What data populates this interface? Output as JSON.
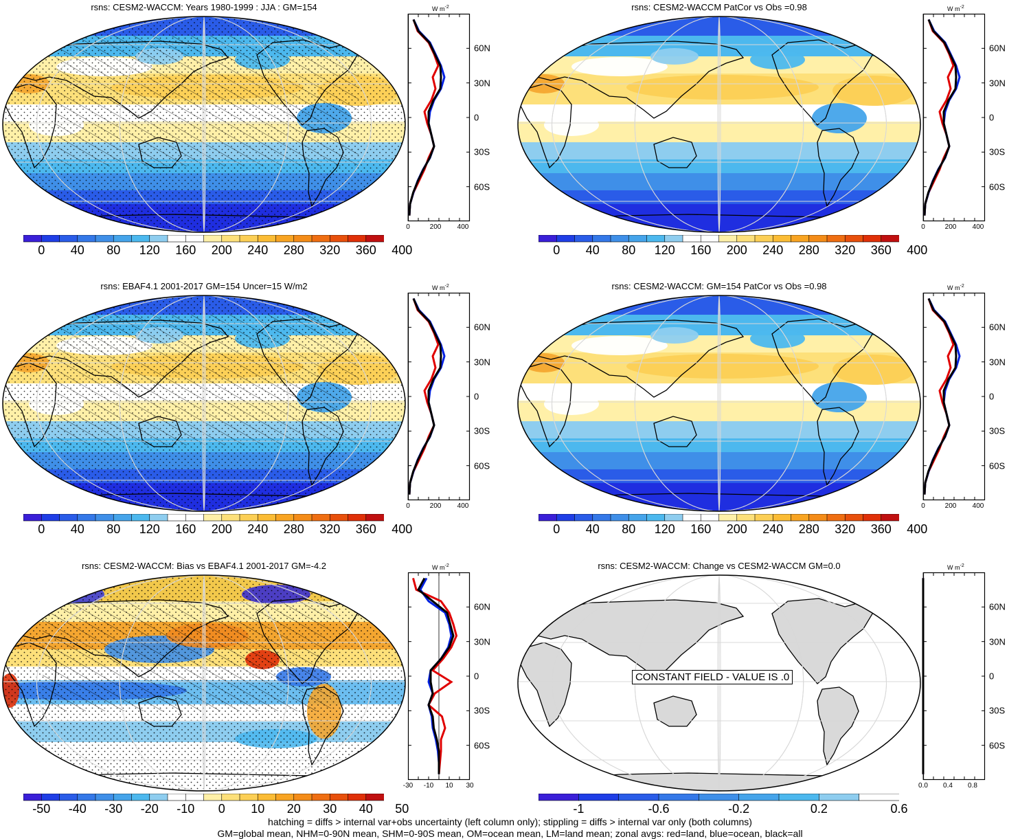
{
  "panels": [
    {
      "id": "model-climatology",
      "title": "rsns: CESM2-WACCM: Years 1980-1999 : JJA : GM=154",
      "variant": "clim",
      "colorbar": {
        "labels": [
          "0",
          "40",
          "80",
          "120",
          "160",
          "200",
          "240",
          "280",
          "320",
          "360",
          "400"
        ],
        "type": "absolute"
      },
      "zonal": {
        "units": "W m",
        "units_exp": "-2",
        "lat_labels": [
          "60N",
          "30N",
          "0",
          "30S",
          "60S"
        ],
        "x_labels": [
          "0",
          "200",
          "400"
        ],
        "xlim": [
          0,
          450
        ],
        "ref_line": 0
      }
    },
    {
      "id": "model-pattern",
      "title": "rsns: CESM2-WACCM PatCor vs Obs =0.98",
      "variant": "smooth",
      "colorbar": {
        "labels": [
          "0",
          "40",
          "80",
          "120",
          "160",
          "200",
          "240",
          "280",
          "320",
          "360",
          "400"
        ],
        "type": "absolute"
      },
      "zonal": {
        "units": "W m",
        "units_exp": "-2",
        "lat_labels": [
          "60N",
          "30N",
          "0",
          "30S",
          "60S"
        ],
        "x_labels": [
          "0",
          "200",
          "400"
        ],
        "xlim": [
          0,
          450
        ],
        "ref_line": 0
      }
    },
    {
      "id": "obs-climatology",
      "title": "rsns: EBAF4.1 2001-2017 GM=154 Uncer=15 W/m2",
      "variant": "clim",
      "colorbar": {
        "labels": [
          "0",
          "40",
          "80",
          "120",
          "160",
          "200",
          "240",
          "280",
          "320",
          "360",
          "400"
        ],
        "type": "absolute"
      },
      "zonal": {
        "units": "W m",
        "units_exp": "-2",
        "lat_labels": [
          "60N",
          "30N",
          "0",
          "30S",
          "60S"
        ],
        "x_labels": [
          "0",
          "200",
          "400"
        ],
        "xlim": [
          0,
          450
        ],
        "ref_line": 0
      }
    },
    {
      "id": "model-pattern-2",
      "title": "rsns: CESM2-WACCM: GM=154 PatCor vs Obs =0.98",
      "variant": "smooth",
      "colorbar": {
        "labels": [
          "0",
          "40",
          "80",
          "120",
          "160",
          "200",
          "240",
          "280",
          "320",
          "360",
          "400"
        ],
        "type": "absolute"
      },
      "zonal": {
        "units": "W m",
        "units_exp": "-2",
        "lat_labels": [
          "60N",
          "30N",
          "0",
          "30S",
          "60S"
        ],
        "x_labels": [
          "0",
          "200",
          "400"
        ],
        "xlim": [
          0,
          450
        ],
        "ref_line": 0
      }
    },
    {
      "id": "bias",
      "title": "rsns: CESM2-WACCM: Bias vs EBAF4.1 2001-2017 GM=-4.2",
      "variant": "bias",
      "colorbar": {
        "labels": [
          "-50",
          "-40",
          "-30",
          "-20",
          "-10",
          "0",
          "10",
          "20",
          "30",
          "40",
          "50"
        ],
        "type": "diverging"
      },
      "zonal": {
        "units": "W m",
        "units_exp": "-2",
        "lat_labels": [
          "60N",
          "30N",
          "0",
          "30S",
          "60S"
        ],
        "x_labels": [
          "-30",
          "-10",
          "10",
          "30"
        ],
        "xlim": [
          -30,
          30
        ],
        "ref_line": 0
      }
    },
    {
      "id": "change",
      "title": "rsns: CESM2-WACCM: Change vs CESM2-WACCM GM=0.0",
      "variant": "constant",
      "constant_label": "CONSTANT FIELD - VALUE IS .0",
      "colorbar": {
        "labels": [
          "-1",
          "-0.6",
          "-0.2",
          "0.2",
          "0.6"
        ],
        "type": "change"
      },
      "zonal": {
        "units": "W m",
        "units_exp": "-2",
        "lat_labels": [
          "60N",
          "30N",
          "0",
          "30S",
          "60S"
        ],
        "x_labels": [
          "0.0",
          "0.4",
          "0.8"
        ],
        "xlim": [
          0,
          1
        ],
        "ref_line": 0
      }
    }
  ],
  "footer": {
    "line1": "hatching = diffs > internal var+obs uncertainty (left column only); stippling = diffs > internal var only (both columns)",
    "line2": "GM=global mean, NHM=0-90N mean, SHM=0-90S mean, OM=ocean mean, LM=land mean; zonal avgs: red=land, blue=ocean, black=all"
  },
  "zonal_means": {
    "lat": [
      85,
      75,
      65,
      55,
      45,
      35,
      25,
      15,
      5,
      -5,
      -15,
      -25,
      -35,
      -45,
      -55,
      -65,
      -75,
      -85
    ],
    "clim": {
      "land": [
        40,
        70,
        150,
        190,
        220,
        180,
        200,
        170,
        120,
        140,
        170,
        190,
        150,
        120,
        80,
        40,
        15,
        10
      ],
      "ocean": [
        40,
        80,
        160,
        200,
        240,
        265,
        240,
        190,
        160,
        150,
        170,
        190,
        160,
        110,
        70,
        40,
        15,
        10
      ],
      "all": [
        40,
        75,
        155,
        195,
        235,
        240,
        235,
        185,
        150,
        150,
        170,
        190,
        158,
        112,
        72,
        38,
        15,
        10
      ]
    },
    "bias": {
      "land": [
        -25,
        -22,
        2,
        10,
        14,
        17,
        12,
        4,
        -6,
        12,
        -4,
        -10,
        3,
        6,
        2,
        2,
        1,
        0
      ],
      "ocean": [
        -12,
        -18,
        -10,
        6,
        10,
        12,
        9,
        2,
        -8,
        -10,
        -6,
        -10,
        -7,
        -6,
        -3,
        -1,
        0,
        0
      ],
      "all": [
        -14,
        -20,
        -6,
        8,
        11,
        14,
        10,
        2,
        -8,
        -8,
        -6,
        -10,
        -6,
        -5,
        -2,
        0,
        0,
        0
      ]
    },
    "change": {
      "land": [
        0,
        0,
        0,
        0,
        0,
        0,
        0,
        0,
        0,
        0,
        0,
        0,
        0,
        0,
        0,
        0,
        0,
        0
      ],
      "ocean": [
        0,
        0,
        0,
        0,
        0,
        0,
        0,
        0,
        0,
        0,
        0,
        0,
        0,
        0,
        0,
        0,
        0,
        0
      ],
      "all": [
        0,
        0,
        0,
        0,
        0,
        0,
        0,
        0,
        0,
        0,
        0,
        0,
        0,
        0,
        0,
        0,
        0,
        0
      ]
    }
  },
  "colors": {
    "land_line": "#e00000",
    "ocean_line": "#0020e0",
    "all_line": "#000000",
    "constant_land": "#d9d9d9"
  }
}
